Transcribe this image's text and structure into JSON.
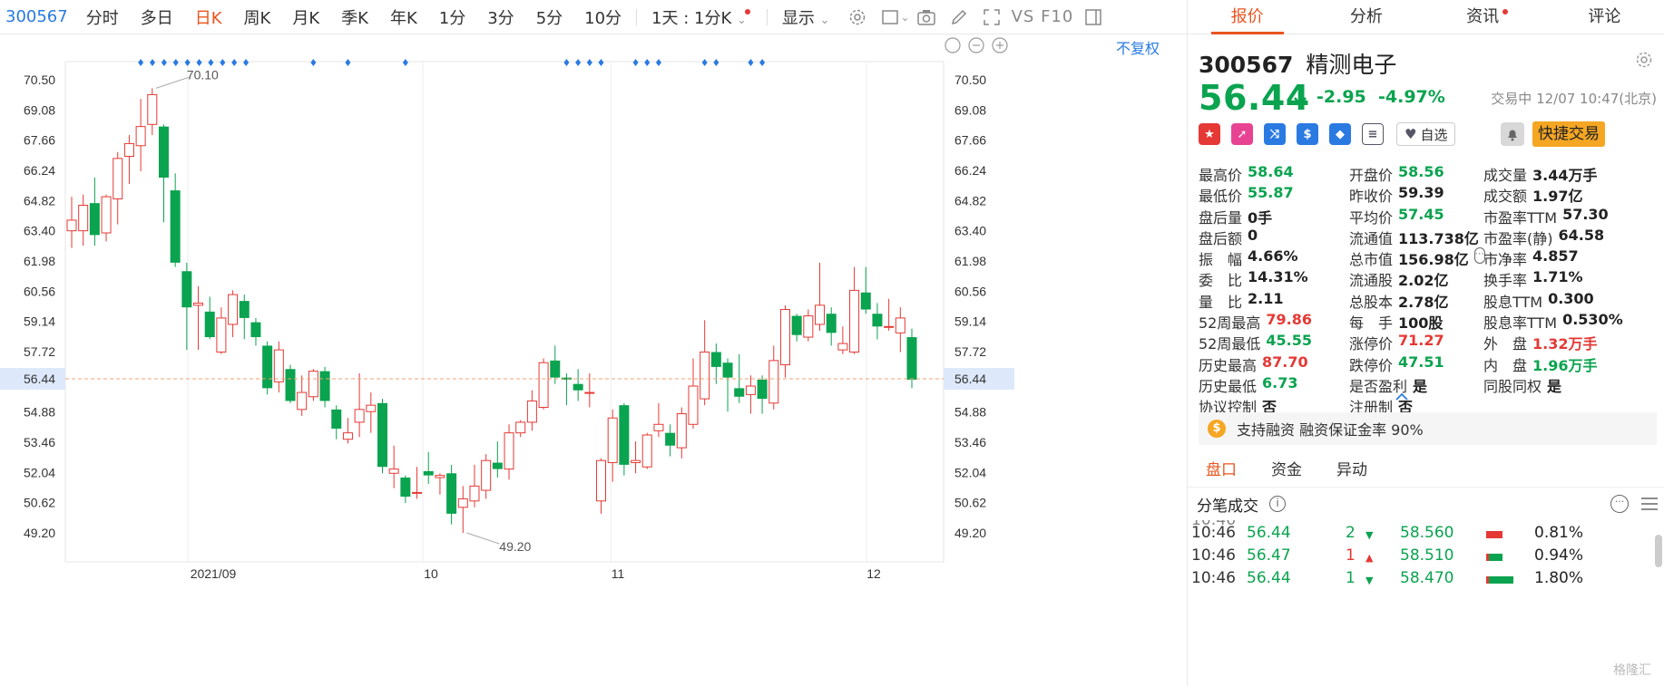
{
  "toolbar": {
    "code": "300567",
    "items": [
      "分时",
      "多日",
      "日K",
      "周K",
      "月K",
      "季K",
      "年K",
      "1分",
      "3分",
      "5分",
      "10分"
    ],
    "active": "日K",
    "period_select": "1天 : 1分K",
    "display": "显示",
    "vs_f10": "VS F10"
  },
  "chart": {
    "fuquan": "不复权",
    "high_label": "70.10",
    "low_label": "49.20",
    "current_label": "56.44",
    "y_ticks": [
      "70.50",
      "69.08",
      "67.66",
      "66.24",
      "64.82",
      "63.40",
      "61.98",
      "60.56",
      "59.14",
      "57.72",
      "56.44",
      "54.88",
      "53.46",
      "52.04",
      "50.62",
      "49.20"
    ],
    "x_labels": [
      "2021/09",
      "10",
      "11",
      "12"
    ]
  },
  "chart_data": {
    "type": "candlestick",
    "ylim": [
      48.5,
      71.2
    ],
    "current": 56.44,
    "high_mark": 70.1,
    "low_mark": 49.2,
    "candles": [
      {
        "o": 63.4,
        "c": 63.9,
        "h": 65.0,
        "l": 62.6
      },
      {
        "o": 63.4,
        "c": 64.6,
        "h": 65.1,
        "l": 62.7
      },
      {
        "o": 64.7,
        "c": 63.2,
        "h": 65.9,
        "l": 62.7
      },
      {
        "o": 63.3,
        "c": 65.0,
        "h": 65.1,
        "l": 62.9
      },
      {
        "o": 64.9,
        "c": 66.8,
        "h": 67.1,
        "l": 63.7
      },
      {
        "o": 66.9,
        "c": 67.5,
        "h": 67.9,
        "l": 65.6
      },
      {
        "o": 67.4,
        "c": 68.3,
        "h": 69.6,
        "l": 66.2
      },
      {
        "o": 68.4,
        "c": 69.8,
        "h": 70.1,
        "l": 67.9
      },
      {
        "o": 68.3,
        "c": 65.9,
        "h": 68.4,
        "l": 63.8
      },
      {
        "o": 65.3,
        "c": 61.9,
        "h": 66.1,
        "l": 61.7
      },
      {
        "o": 61.5,
        "c": 59.8,
        "h": 61.9,
        "l": 57.8
      },
      {
        "o": 59.9,
        "c": 60.0,
        "h": 60.8,
        "l": 57.8
      },
      {
        "o": 59.6,
        "c": 58.4,
        "h": 60.3,
        "l": 58.3
      },
      {
        "o": 57.7,
        "c": 59.3,
        "h": 59.8,
        "l": 57.6
      },
      {
        "o": 59.0,
        "c": 60.4,
        "h": 60.6,
        "l": 58.4
      },
      {
        "o": 60.1,
        "c": 59.3,
        "h": 60.4,
        "l": 58.3
      },
      {
        "o": 59.1,
        "c": 58.4,
        "h": 59.3,
        "l": 58.0
      },
      {
        "o": 58.0,
        "c": 56.0,
        "h": 58.2,
        "l": 55.7
      },
      {
        "o": 56.3,
        "c": 57.8,
        "h": 58.2,
        "l": 55.8
      },
      {
        "o": 56.9,
        "c": 55.4,
        "h": 57.1,
        "l": 55.3
      },
      {
        "o": 55.0,
        "c": 55.8,
        "h": 56.6,
        "l": 54.7
      },
      {
        "o": 55.6,
        "c": 56.8,
        "h": 56.9,
        "l": 55.4
      },
      {
        "o": 56.8,
        "c": 55.4,
        "h": 57.0,
        "l": 55.1
      },
      {
        "o": 55.0,
        "c": 54.1,
        "h": 55.2,
        "l": 53.6
      },
      {
        "o": 53.6,
        "c": 53.9,
        "h": 54.6,
        "l": 53.4
      },
      {
        "o": 54.4,
        "c": 55.0,
        "h": 56.7,
        "l": 53.7
      },
      {
        "o": 54.9,
        "c": 55.2,
        "h": 55.8,
        "l": 53.9
      },
      {
        "o": 55.3,
        "c": 52.3,
        "h": 55.5,
        "l": 52.0
      },
      {
        "o": 52.0,
        "c": 52.2,
        "h": 53.3,
        "l": 51.3
      },
      {
        "o": 51.8,
        "c": 50.9,
        "h": 51.9,
        "l": 50.6
      },
      {
        "o": 51.1,
        "c": 51.1,
        "h": 52.3,
        "l": 50.8
      },
      {
        "o": 52.1,
        "c": 51.9,
        "h": 53.0,
        "l": 51.5
      },
      {
        "o": 51.8,
        "c": 51.9,
        "h": 52.0,
        "l": 51.0
      },
      {
        "o": 52.0,
        "c": 50.1,
        "h": 52.4,
        "l": 49.6
      },
      {
        "o": 50.4,
        "c": 50.8,
        "h": 51.4,
        "l": 49.2
      },
      {
        "o": 50.7,
        "c": 51.4,
        "h": 52.4,
        "l": 50.4
      },
      {
        "o": 51.2,
        "c": 52.6,
        "h": 52.9,
        "l": 50.8
      },
      {
        "o": 52.5,
        "c": 52.2,
        "h": 53.5,
        "l": 51.8
      },
      {
        "o": 52.2,
        "c": 53.9,
        "h": 54.3,
        "l": 51.7
      },
      {
        "o": 53.9,
        "c": 54.4,
        "h": 54.5,
        "l": 53.7
      },
      {
        "o": 54.4,
        "c": 55.4,
        "h": 55.9,
        "l": 54.0
      },
      {
        "o": 55.1,
        "c": 57.2,
        "h": 57.4,
        "l": 55.0
      },
      {
        "o": 57.3,
        "c": 56.5,
        "h": 58.0,
        "l": 56.2
      },
      {
        "o": 56.5,
        "c": 56.4,
        "h": 56.7,
        "l": 55.2
      },
      {
        "o": 56.2,
        "c": 55.9,
        "h": 56.9,
        "l": 55.4
      },
      {
        "o": 55.8,
        "c": 55.8,
        "h": 56.7,
        "l": 55.1
      },
      {
        "o": 50.7,
        "c": 52.6,
        "h": 52.7,
        "l": 50.1
      },
      {
        "o": 52.5,
        "c": 54.6,
        "h": 55.0,
        "l": 51.6
      },
      {
        "o": 55.2,
        "c": 52.4,
        "h": 55.3,
        "l": 51.9
      },
      {
        "o": 52.5,
        "c": 52.6,
        "h": 53.5,
        "l": 52.0
      },
      {
        "o": 52.3,
        "c": 53.8,
        "h": 53.9,
        "l": 52.2
      },
      {
        "o": 54.0,
        "c": 54.3,
        "h": 55.3,
        "l": 53.7
      },
      {
        "o": 53.9,
        "c": 53.3,
        "h": 54.3,
        "l": 52.8
      },
      {
        "o": 53.2,
        "c": 54.8,
        "h": 55.1,
        "l": 52.7
      },
      {
        "o": 54.3,
        "c": 56.1,
        "h": 57.4,
        "l": 54.1
      },
      {
        "o": 55.5,
        "c": 57.7,
        "h": 59.2,
        "l": 55.2
      },
      {
        "o": 57.7,
        "c": 57.0,
        "h": 58.1,
        "l": 56.2
      },
      {
        "o": 57.2,
        "c": 56.5,
        "h": 57.4,
        "l": 54.9
      },
      {
        "o": 56.0,
        "c": 55.6,
        "h": 57.6,
        "l": 55.3
      },
      {
        "o": 55.7,
        "c": 56.1,
        "h": 56.6,
        "l": 54.8
      },
      {
        "o": 56.4,
        "c": 55.5,
        "h": 56.6,
        "l": 54.8
      },
      {
        "o": 55.3,
        "c": 57.3,
        "h": 58.0,
        "l": 55.0
      },
      {
        "o": 57.1,
        "c": 59.7,
        "h": 59.9,
        "l": 56.5
      },
      {
        "o": 59.4,
        "c": 58.5,
        "h": 59.5,
        "l": 58.2
      },
      {
        "o": 58.4,
        "c": 59.4,
        "h": 59.7,
        "l": 58.2
      },
      {
        "o": 59.0,
        "c": 59.9,
        "h": 61.9,
        "l": 58.7
      },
      {
        "o": 59.5,
        "c": 58.6,
        "h": 59.8,
        "l": 58.0
      },
      {
        "o": 57.8,
        "c": 58.1,
        "h": 58.9,
        "l": 57.6
      },
      {
        "o": 57.7,
        "c": 60.6,
        "h": 61.7,
        "l": 57.6
      },
      {
        "o": 60.5,
        "c": 59.7,
        "h": 61.7,
        "l": 59.5
      },
      {
        "o": 59.5,
        "c": 58.9,
        "h": 60.0,
        "l": 58.3
      },
      {
        "o": 58.9,
        "c": 58.9,
        "h": 60.2,
        "l": 58.7
      },
      {
        "o": 58.6,
        "c": 59.3,
        "h": 59.8,
        "l": 57.7
      },
      {
        "o": 58.4,
        "c": 56.4,
        "h": 58.8,
        "l": 56.0
      }
    ]
  },
  "right_tabs": [
    "报价",
    "分析",
    "资讯",
    "评论"
  ],
  "stock": {
    "code": "300567",
    "name": "精测电子",
    "price": "56.44",
    "change": "-2.95",
    "change_pct": "-4.97%",
    "status": "交易中 12/07 10:47(北京)",
    "watch_label": "自选",
    "quick_trade": "快捷交易"
  },
  "colors": {
    "up": "#e53935",
    "down": "#0aa34f",
    "accent": "#e8541e",
    "link": "#2a7ae2"
  },
  "quote": [
    [
      [
        "最高价",
        "58.64",
        "g"
      ],
      [
        "开盘价",
        "58.56",
        "g"
      ],
      [
        "成交量",
        "3.44万手",
        ""
      ]
    ],
    [
      [
        "最低价",
        "55.87",
        "g"
      ],
      [
        "昨收价",
        "59.39",
        ""
      ],
      [
        "成交额",
        "1.97亿",
        ""
      ]
    ],
    [
      [
        "盘后量",
        "0手",
        ""
      ],
      [
        "平均价",
        "57.45",
        "g"
      ],
      [
        "市盈率TTM",
        "57.30",
        ""
      ]
    ],
    [
      [
        "盘后额",
        "0",
        ""
      ],
      [
        "流通值",
        "113.738亿",
        ""
      ],
      [
        "市盈率(静)",
        "64.58",
        ""
      ]
    ],
    [
      [
        "振　幅",
        "4.66%",
        ""
      ],
      [
        "总市值",
        "156.98亿",
        ""
      ],
      [
        "市净率",
        "4.857",
        ""
      ]
    ],
    [
      [
        "委　比",
        "14.31%",
        ""
      ],
      [
        "流通股",
        "2.02亿",
        ""
      ],
      [
        "换手率",
        "1.71%",
        ""
      ]
    ],
    [
      [
        "量　比",
        "2.11",
        ""
      ],
      [
        "总股本",
        "2.78亿",
        ""
      ],
      [
        "股息TTM",
        "0.300",
        ""
      ]
    ],
    [
      [
        "52周最高",
        "79.86",
        "r"
      ],
      [
        "每　手",
        "100股",
        ""
      ],
      [
        "股息率TTM",
        "0.530%",
        ""
      ]
    ],
    [
      [
        "52周最低",
        "45.55",
        "g"
      ],
      [
        "涨停价",
        "71.27",
        "r"
      ],
      [
        "外　盘",
        "1.32万手",
        "r"
      ]
    ],
    [
      [
        "历史最高",
        "87.70",
        "r"
      ],
      [
        "跌停价",
        "47.51",
        "g"
      ],
      [
        "内　盘",
        "1.96万手",
        "g"
      ]
    ],
    [
      [
        "历史最低",
        "6.73",
        "g"
      ],
      [
        "是否盈利",
        "是",
        ""
      ],
      [
        "同股同权",
        "是",
        ""
      ]
    ],
    [
      [
        "协议控制",
        "否",
        ""
      ],
      [
        "注册制",
        "否",
        ""
      ]
    ]
  ],
  "margin": "支持融资 融资保证金率 90%",
  "sub_tabs": [
    "盘口",
    "资金",
    "异动"
  ],
  "trades_title": "分笔成交",
  "trades": [
    {
      "time": "10:46",
      "price": "56.44",
      "qty": "2",
      "dir": "down",
      "p2": "58.560",
      "pct": "0.81%"
    },
    {
      "time": "10:46",
      "price": "56.47",
      "qty": "1",
      "dir": "up",
      "p2": "58.510",
      "pct": "0.94%"
    },
    {
      "time": "10:46",
      "price": "56.44",
      "qty": "1",
      "dir": "down",
      "p2": "58.470",
      "pct": "1.80%"
    }
  ],
  "watermark": "格隆汇"
}
